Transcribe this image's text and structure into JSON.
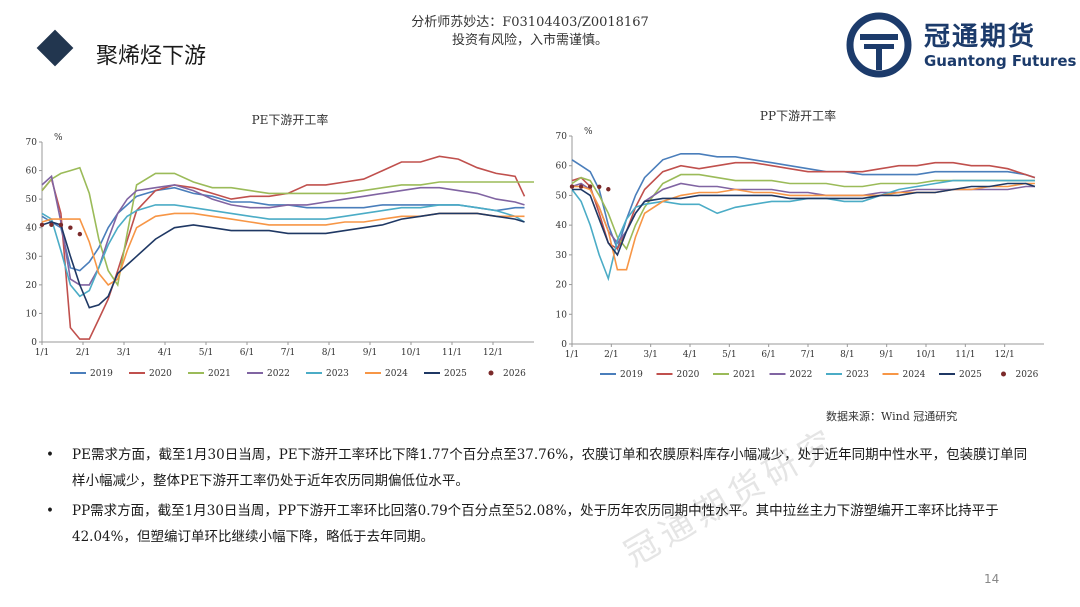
{
  "header": {
    "title": "聚烯烃下游",
    "analyst_line": "分析师苏妙达：F03104403/Z0018167",
    "risk_line": "投资有风险，入市需谨慎。",
    "brand_cn": "冠通期货",
    "brand_en": "Guantong Futures",
    "brand_color": "#1c3b6b"
  },
  "source_note": "数据来源：Wind 冠通研究",
  "watermark": "冠通期货研究",
  "page_number": "14",
  "bullets": [
    "PE需求方面，截至1月30日当周，PE下游开工率环比下降1.77个百分点至37.76%，农膜订单和农膜原料库存小幅减少，处于近年同期中性水平，包装膜订单同样小幅减少，整体PE下游开工率仍处于近年农历同期偏低位水平。",
    "PP需求方面，截至1月30日当周，PP下游开工率环比回落0.79个百分点至52.08%，处于历年农历同期中性水平。其中拉丝主力下游塑编开工率环比持平于42.04%，但塑编订单环比继续小幅下降，略低于去年同期。"
  ],
  "chart_data": [
    {
      "type": "line",
      "title": "PE下游开工率",
      "ylabel": "%",
      "ylim": [
        0,
        70
      ],
      "yticks": [
        0,
        10,
        20,
        30,
        40,
        50,
        60,
        70
      ],
      "categories": [
        "1/1",
        "2/1",
        "3/1",
        "4/1",
        "5/1",
        "6/1",
        "7/1",
        "8/1",
        "9/1",
        "10/1",
        "11/1",
        "12/1"
      ],
      "x_range": [
        0,
        52
      ],
      "grid": false,
      "legend_position": "bottom",
      "series": [
        {
          "name": "2019",
          "color": "#4a7ebb",
          "dashed": false,
          "x": [
            0,
            1,
            2,
            3,
            4,
            5,
            6,
            7,
            8,
            9,
            10,
            12,
            14,
            16,
            18,
            20,
            22,
            24,
            26,
            28,
            30,
            32,
            34,
            36,
            38,
            40,
            42,
            44,
            46,
            48,
            50,
            51
          ],
          "y": [
            44,
            42,
            40,
            26,
            25,
            28,
            33,
            40,
            45,
            48,
            51,
            53,
            54,
            52,
            51,
            49,
            49,
            48,
            48,
            47,
            47,
            47,
            47,
            48,
            48,
            48,
            48,
            48,
            47,
            46,
            47,
            47
          ]
        },
        {
          "name": "2020",
          "color": "#c0504d",
          "dashed": false,
          "x": [
            0,
            1,
            2,
            3,
            4,
            5,
            6,
            7,
            8,
            10,
            12,
            14,
            16,
            18,
            20,
            22,
            24,
            26,
            28,
            30,
            32,
            34,
            36,
            38,
            40,
            42,
            44,
            46,
            48,
            50,
            51
          ],
          "y": [
            53,
            57,
            45,
            5,
            1,
            1,
            8,
            15,
            25,
            46,
            53,
            55,
            54,
            52,
            50,
            51,
            51,
            52,
            55,
            55,
            56,
            57,
            60,
            63,
            63,
            65,
            64,
            61,
            59,
            58,
            51
          ]
        },
        {
          "name": "2021",
          "color": "#9bbb59",
          "dashed": false,
          "x": [
            0,
            1,
            2,
            3,
            4,
            5,
            6,
            7,
            8,
            9,
            10,
            12,
            14,
            16,
            18,
            20,
            22,
            24,
            26,
            28,
            30,
            32,
            34,
            36,
            38,
            40,
            42,
            44,
            46,
            48,
            50,
            52
          ],
          "y": [
            53,
            57,
            59,
            60,
            61,
            52,
            36,
            25,
            20,
            38,
            55,
            59,
            59,
            56,
            54,
            54,
            53,
            52,
            52,
            52,
            52,
            52,
            53,
            54,
            55,
            55,
            56,
            56,
            56,
            56,
            56,
            56
          ]
        },
        {
          "name": "2022",
          "color": "#8064a2",
          "dashed": false,
          "x": [
            0,
            1,
            2,
            3,
            4,
            5,
            6,
            7,
            8,
            9,
            10,
            12,
            14,
            16,
            18,
            20,
            22,
            24,
            26,
            28,
            30,
            32,
            34,
            36,
            38,
            40,
            42,
            44,
            46,
            48,
            50,
            51
          ],
          "y": [
            55,
            58,
            42,
            22,
            20,
            20,
            26,
            36,
            45,
            50,
            53,
            54,
            55,
            53,
            50,
            48,
            47,
            47,
            48,
            48,
            49,
            50,
            51,
            52,
            53,
            54,
            54,
            53,
            52,
            50,
            49,
            48
          ]
        },
        {
          "name": "2023",
          "color": "#4bacc6",
          "dashed": false,
          "x": [
            0,
            1,
            2,
            3,
            4,
            5,
            6,
            7,
            8,
            9,
            10,
            12,
            14,
            16,
            18,
            20,
            22,
            24,
            26,
            28,
            30,
            32,
            34,
            36,
            38,
            40,
            42,
            44,
            46,
            48,
            50,
            51
          ],
          "y": [
            45,
            43,
            32,
            20,
            16,
            18,
            26,
            34,
            40,
            44,
            46,
            48,
            48,
            47,
            46,
            45,
            44,
            43,
            43,
            43,
            43,
            44,
            45,
            46,
            47,
            47,
            48,
            48,
            47,
            46,
            44,
            42
          ]
        },
        {
          "name": "2024",
          "color": "#f79646",
          "dashed": false,
          "x": [
            0,
            1,
            2,
            3,
            4,
            5,
            6,
            7,
            8,
            9,
            10,
            12,
            14,
            16,
            18,
            20,
            22,
            24,
            26,
            28,
            30,
            32,
            34,
            36,
            38,
            40,
            42,
            44,
            46,
            48,
            50,
            51
          ],
          "y": [
            42,
            43,
            43,
            43,
            43,
            35,
            24,
            20,
            22,
            32,
            40,
            44,
            45,
            45,
            44,
            43,
            42,
            41,
            41,
            41,
            41,
            42,
            42,
            43,
            44,
            44,
            45,
            45,
            45,
            44,
            44,
            44
          ]
        },
        {
          "name": "2025",
          "color": "#1f3864",
          "dashed": false,
          "x": [
            0,
            1,
            2,
            3,
            4,
            5,
            6,
            7,
            8,
            10,
            12,
            14,
            16,
            18,
            20,
            22,
            24,
            26,
            28,
            30,
            32,
            34,
            36,
            38,
            40,
            42,
            44,
            46,
            48,
            50,
            51
          ],
          "y": [
            41,
            42,
            41,
            30,
            20,
            12,
            13,
            16,
            24,
            30,
            36,
            40,
            41,
            40,
            39,
            39,
            39,
            38,
            38,
            38,
            39,
            40,
            41,
            43,
            44,
            45,
            45,
            45,
            44,
            43,
            42
          ]
        },
        {
          "name": "2026",
          "color": "#7b2a2a",
          "dashed": true,
          "x": [
            0,
            1,
            2,
            3,
            4
          ],
          "y": [
            41,
            41,
            41,
            40,
            37.76
          ]
        }
      ]
    },
    {
      "type": "line",
      "title": "PP下游开工率",
      "ylabel": "%",
      "ylim": [
        0,
        70
      ],
      "yticks": [
        0,
        10,
        20,
        30,
        40,
        50,
        60,
        70
      ],
      "categories": [
        "1/1",
        "2/1",
        "3/1",
        "4/1",
        "5/1",
        "6/1",
        "7/1",
        "8/1",
        "9/1",
        "10/1",
        "11/1",
        "12/1"
      ],
      "x_range": [
        0,
        52
      ],
      "grid": false,
      "legend_position": "bottom",
      "series": [
        {
          "name": "2019",
          "color": "#4a7ebb",
          "dashed": false,
          "x": [
            0,
            1,
            2,
            3,
            4,
            5,
            6,
            7,
            8,
            10,
            12,
            14,
            16,
            18,
            20,
            22,
            24,
            26,
            28,
            30,
            32,
            34,
            36,
            38,
            40,
            42,
            44,
            46,
            48,
            50,
            51
          ],
          "y": [
            62,
            60,
            58,
            52,
            40,
            32,
            42,
            50,
            56,
            62,
            64,
            64,
            63,
            63,
            62,
            61,
            60,
            59,
            58,
            58,
            57,
            57,
            57,
            57,
            58,
            58,
            58,
            58,
            58,
            57,
            56
          ]
        },
        {
          "name": "2020",
          "color": "#c0504d",
          "dashed": false,
          "x": [
            0,
            1,
            2,
            3,
            4,
            5,
            6,
            7,
            8,
            10,
            12,
            14,
            16,
            18,
            20,
            22,
            24,
            26,
            28,
            30,
            32,
            34,
            36,
            38,
            40,
            42,
            44,
            46,
            48,
            50,
            51
          ],
          "y": [
            55,
            56,
            53,
            44,
            34,
            32,
            38,
            46,
            52,
            58,
            60,
            59,
            60,
            61,
            61,
            60,
            59,
            58,
            58,
            58,
            58,
            59,
            60,
            60,
            61,
            61,
            60,
            60,
            59,
            57,
            56
          ]
        },
        {
          "name": "2021",
          "color": "#9bbb59",
          "dashed": false,
          "x": [
            0,
            1,
            2,
            3,
            4,
            5,
            6,
            7,
            8,
            10,
            12,
            14,
            16,
            18,
            20,
            22,
            24,
            26,
            28,
            30,
            32,
            34,
            36,
            38,
            40,
            42,
            44,
            46,
            48,
            50,
            51
          ],
          "y": [
            54,
            56,
            55,
            50,
            44,
            36,
            32,
            40,
            46,
            54,
            57,
            57,
            56,
            55,
            55,
            55,
            54,
            54,
            54,
            53,
            53,
            54,
            54,
            54,
            55,
            55,
            55,
            55,
            55,
            55,
            55
          ]
        },
        {
          "name": "2022",
          "color": "#8064a2",
          "dashed": false,
          "x": [
            0,
            1,
            2,
            3,
            4,
            5,
            6,
            7,
            8,
            10,
            12,
            14,
            16,
            18,
            20,
            22,
            24,
            26,
            28,
            30,
            32,
            34,
            36,
            38,
            40,
            42,
            44,
            46,
            48,
            50,
            51
          ],
          "y": [
            53,
            54,
            52,
            46,
            38,
            34,
            38,
            44,
            48,
            52,
            54,
            53,
            53,
            52,
            52,
            52,
            51,
            51,
            50,
            50,
            50,
            51,
            51,
            52,
            52,
            52,
            52,
            52,
            52,
            53,
            53
          ]
        },
        {
          "name": "2023",
          "color": "#4bacc6",
          "dashed": false,
          "x": [
            0,
            1,
            2,
            3,
            4,
            5,
            6,
            7,
            8,
            10,
            12,
            14,
            16,
            18,
            20,
            22,
            24,
            26,
            28,
            30,
            32,
            34,
            36,
            38,
            40,
            42,
            44,
            46,
            48,
            50,
            51
          ],
          "y": [
            52,
            48,
            40,
            30,
            22,
            35,
            42,
            46,
            47,
            48,
            47,
            47,
            44,
            46,
            47,
            48,
            48,
            49,
            49,
            48,
            48,
            50,
            52,
            53,
            54,
            55,
            55,
            55,
            55,
            55,
            55
          ]
        },
        {
          "name": "2024",
          "color": "#f79646",
          "dashed": false,
          "x": [
            0,
            1,
            2,
            3,
            4,
            5,
            6,
            7,
            8,
            10,
            12,
            14,
            16,
            18,
            20,
            22,
            24,
            26,
            28,
            30,
            32,
            34,
            36,
            38,
            40,
            42,
            44,
            46,
            48,
            50,
            51
          ],
          "y": [
            53,
            53,
            52,
            46,
            38,
            25,
            25,
            36,
            44,
            48,
            50,
            51,
            51,
            52,
            51,
            51,
            50,
            50,
            50,
            50,
            50,
            50,
            51,
            51,
            51,
            52,
            52,
            53,
            53,
            54,
            54
          ]
        },
        {
          "name": "2025",
          "color": "#1f3864",
          "dashed": false,
          "x": [
            0,
            1,
            2,
            3,
            4,
            5,
            6,
            7,
            8,
            10,
            12,
            14,
            16,
            18,
            20,
            22,
            24,
            26,
            28,
            30,
            32,
            34,
            36,
            38,
            40,
            42,
            44,
            46,
            48,
            50,
            51
          ],
          "y": [
            52,
            52,
            50,
            42,
            34,
            30,
            38,
            44,
            48,
            49,
            49,
            50,
            50,
            50,
            50,
            50,
            49,
            49,
            49,
            49,
            49,
            50,
            50,
            51,
            51,
            52,
            53,
            53,
            54,
            54,
            53
          ]
        },
        {
          "name": "2026",
          "color": "#7b2a2a",
          "dashed": true,
          "x": [
            0,
            1,
            2,
            3,
            4
          ],
          "y": [
            53,
            53,
            53,
            52.9,
            52.08
          ]
        }
      ]
    }
  ]
}
